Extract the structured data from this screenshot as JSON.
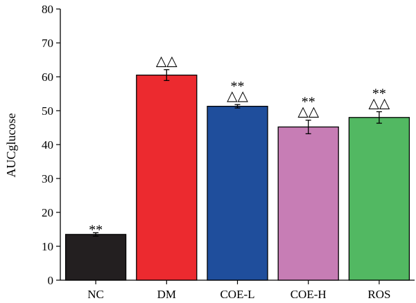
{
  "chart_data": {
    "type": "bar",
    "ylabel": "AUCglucose",
    "xlabel": "",
    "ylim": [
      0,
      80
    ],
    "yticks": [
      0,
      10,
      20,
      30,
      40,
      50,
      60,
      70,
      80
    ],
    "grid": false,
    "categories": [
      "NC",
      "DM",
      "COE-L",
      "COE-H",
      "ROS"
    ],
    "values": [
      13.5,
      60.5,
      51.3,
      45.2,
      48.0
    ],
    "errors": [
      0.5,
      1.6,
      0.5,
      2.0,
      1.7
    ],
    "colors": [
      "#231f20",
      "#ec2a2f",
      "#1f4e9c",
      "#c77db5",
      "#52b862"
    ],
    "annotations": [
      [
        "**"
      ],
      [
        "△△"
      ],
      [
        "△△",
        "**"
      ],
      [
        "△△",
        "**"
      ],
      [
        "△△",
        "**"
      ]
    ]
  }
}
